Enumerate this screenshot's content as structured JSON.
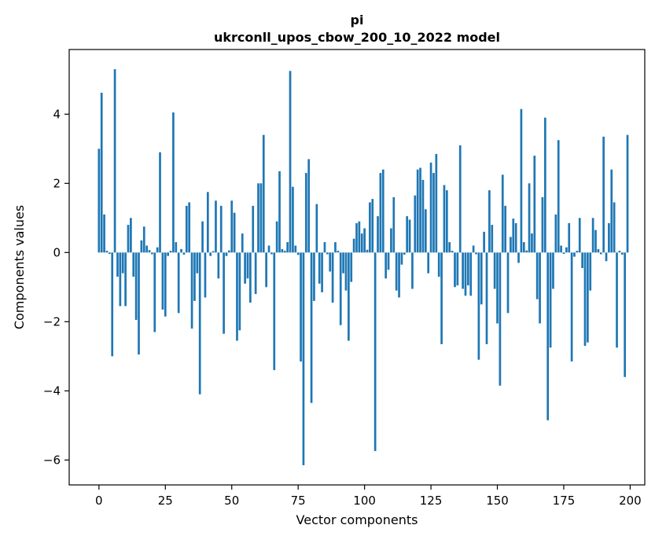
{
  "figure": {
    "background": "#ffffff",
    "spine_color": "#000000",
    "tick_color": "#000000"
  },
  "chart_data": {
    "type": "bar",
    "title": "pi",
    "subtitle": "ukrconll_upos_cbow_200_10_2022 model",
    "xlabel": "Vector components",
    "ylabel": "Components values",
    "bar_color": "#1f77b4",
    "bar_width_data": 0.8,
    "grid": false,
    "legend": false,
    "xlim": [
      -11.2,
      205.5
    ],
    "ylim": [
      -6.72,
      5.87
    ],
    "x_ticks": [
      0,
      25,
      50,
      75,
      100,
      125,
      150,
      175,
      200
    ],
    "y_ticks": [
      4,
      2,
      0,
      -2,
      -4,
      -6
    ],
    "x": "index 0..199",
    "values": [
      3.0,
      4.62,
      1.1,
      0.05,
      -0.04,
      -3.0,
      5.3,
      -0.7,
      -1.55,
      -0.6,
      -1.55,
      0.8,
      1.0,
      -0.7,
      -1.95,
      -2.95,
      0.35,
      0.75,
      0.2,
      0.07,
      -0.05,
      -2.3,
      0.15,
      2.9,
      -1.65,
      -1.85,
      -0.1,
      0.05,
      4.05,
      0.3,
      -1.75,
      0.1,
      -0.06,
      1.35,
      1.45,
      -2.2,
      -1.4,
      -0.6,
      -4.1,
      0.9,
      -1.3,
      1.75,
      -0.1,
      0.04,
      1.5,
      -0.75,
      1.35,
      -2.35,
      -0.1,
      0.06,
      1.5,
      1.15,
      -2.55,
      -2.25,
      0.55,
      -0.9,
      -0.75,
      -1.45,
      1.35,
      -1.2,
      2.0,
      2.0,
      3.4,
      -1.0,
      0.2,
      -0.05,
      -3.4,
      0.9,
      2.35,
      0.1,
      0.05,
      0.3,
      5.25,
      1.9,
      0.2,
      -0.07,
      -3.15,
      -6.15,
      2.3,
      2.7,
      -4.35,
      -1.4,
      1.4,
      -0.9,
      -1.15,
      0.3,
      -0.05,
      -0.55,
      -1.45,
      0.3,
      0.05,
      -2.1,
      -0.6,
      -1.1,
      -2.55,
      -0.85,
      0.4,
      0.85,
      0.9,
      0.55,
      0.7,
      0.08,
      1.45,
      1.55,
      -5.74,
      1.05,
      2.3,
      2.4,
      -0.75,
      -0.5,
      0.7,
      1.6,
      -1.1,
      -1.3,
      -0.35,
      -0.06,
      1.05,
      0.95,
      -1.05,
      1.65,
      2.4,
      2.45,
      2.1,
      1.25,
      -0.6,
      2.6,
      2.3,
      2.85,
      -0.7,
      -2.65,
      1.95,
      1.8,
      0.3,
      0.05,
      -1.0,
      -0.95,
      3.1,
      -1.05,
      -1.25,
      -0.95,
      -1.25,
      0.2,
      -0.05,
      -3.1,
      -1.5,
      0.6,
      -2.65,
      1.8,
      0.8,
      -1.05,
      -2.05,
      -3.85,
      2.25,
      1.35,
      -1.75,
      0.45,
      0.98,
      0.85,
      -0.3,
      4.15,
      0.3,
      0.06,
      2.0,
      0.55,
      2.8,
      -1.35,
      -2.05,
      1.6,
      3.9,
      -4.85,
      -2.75,
      -1.05,
      1.1,
      3.25,
      0.2,
      -0.04,
      0.15,
      0.85,
      -3.15,
      -0.12,
      0.05,
      1.0,
      -0.45,
      -2.7,
      -2.6,
      -1.1,
      1.0,
      0.65,
      0.1,
      -0.05,
      3.35,
      -0.25,
      0.85,
      2.4,
      1.45,
      -2.75,
      0.05,
      -0.06,
      -3.6,
      3.4
    ]
  }
}
